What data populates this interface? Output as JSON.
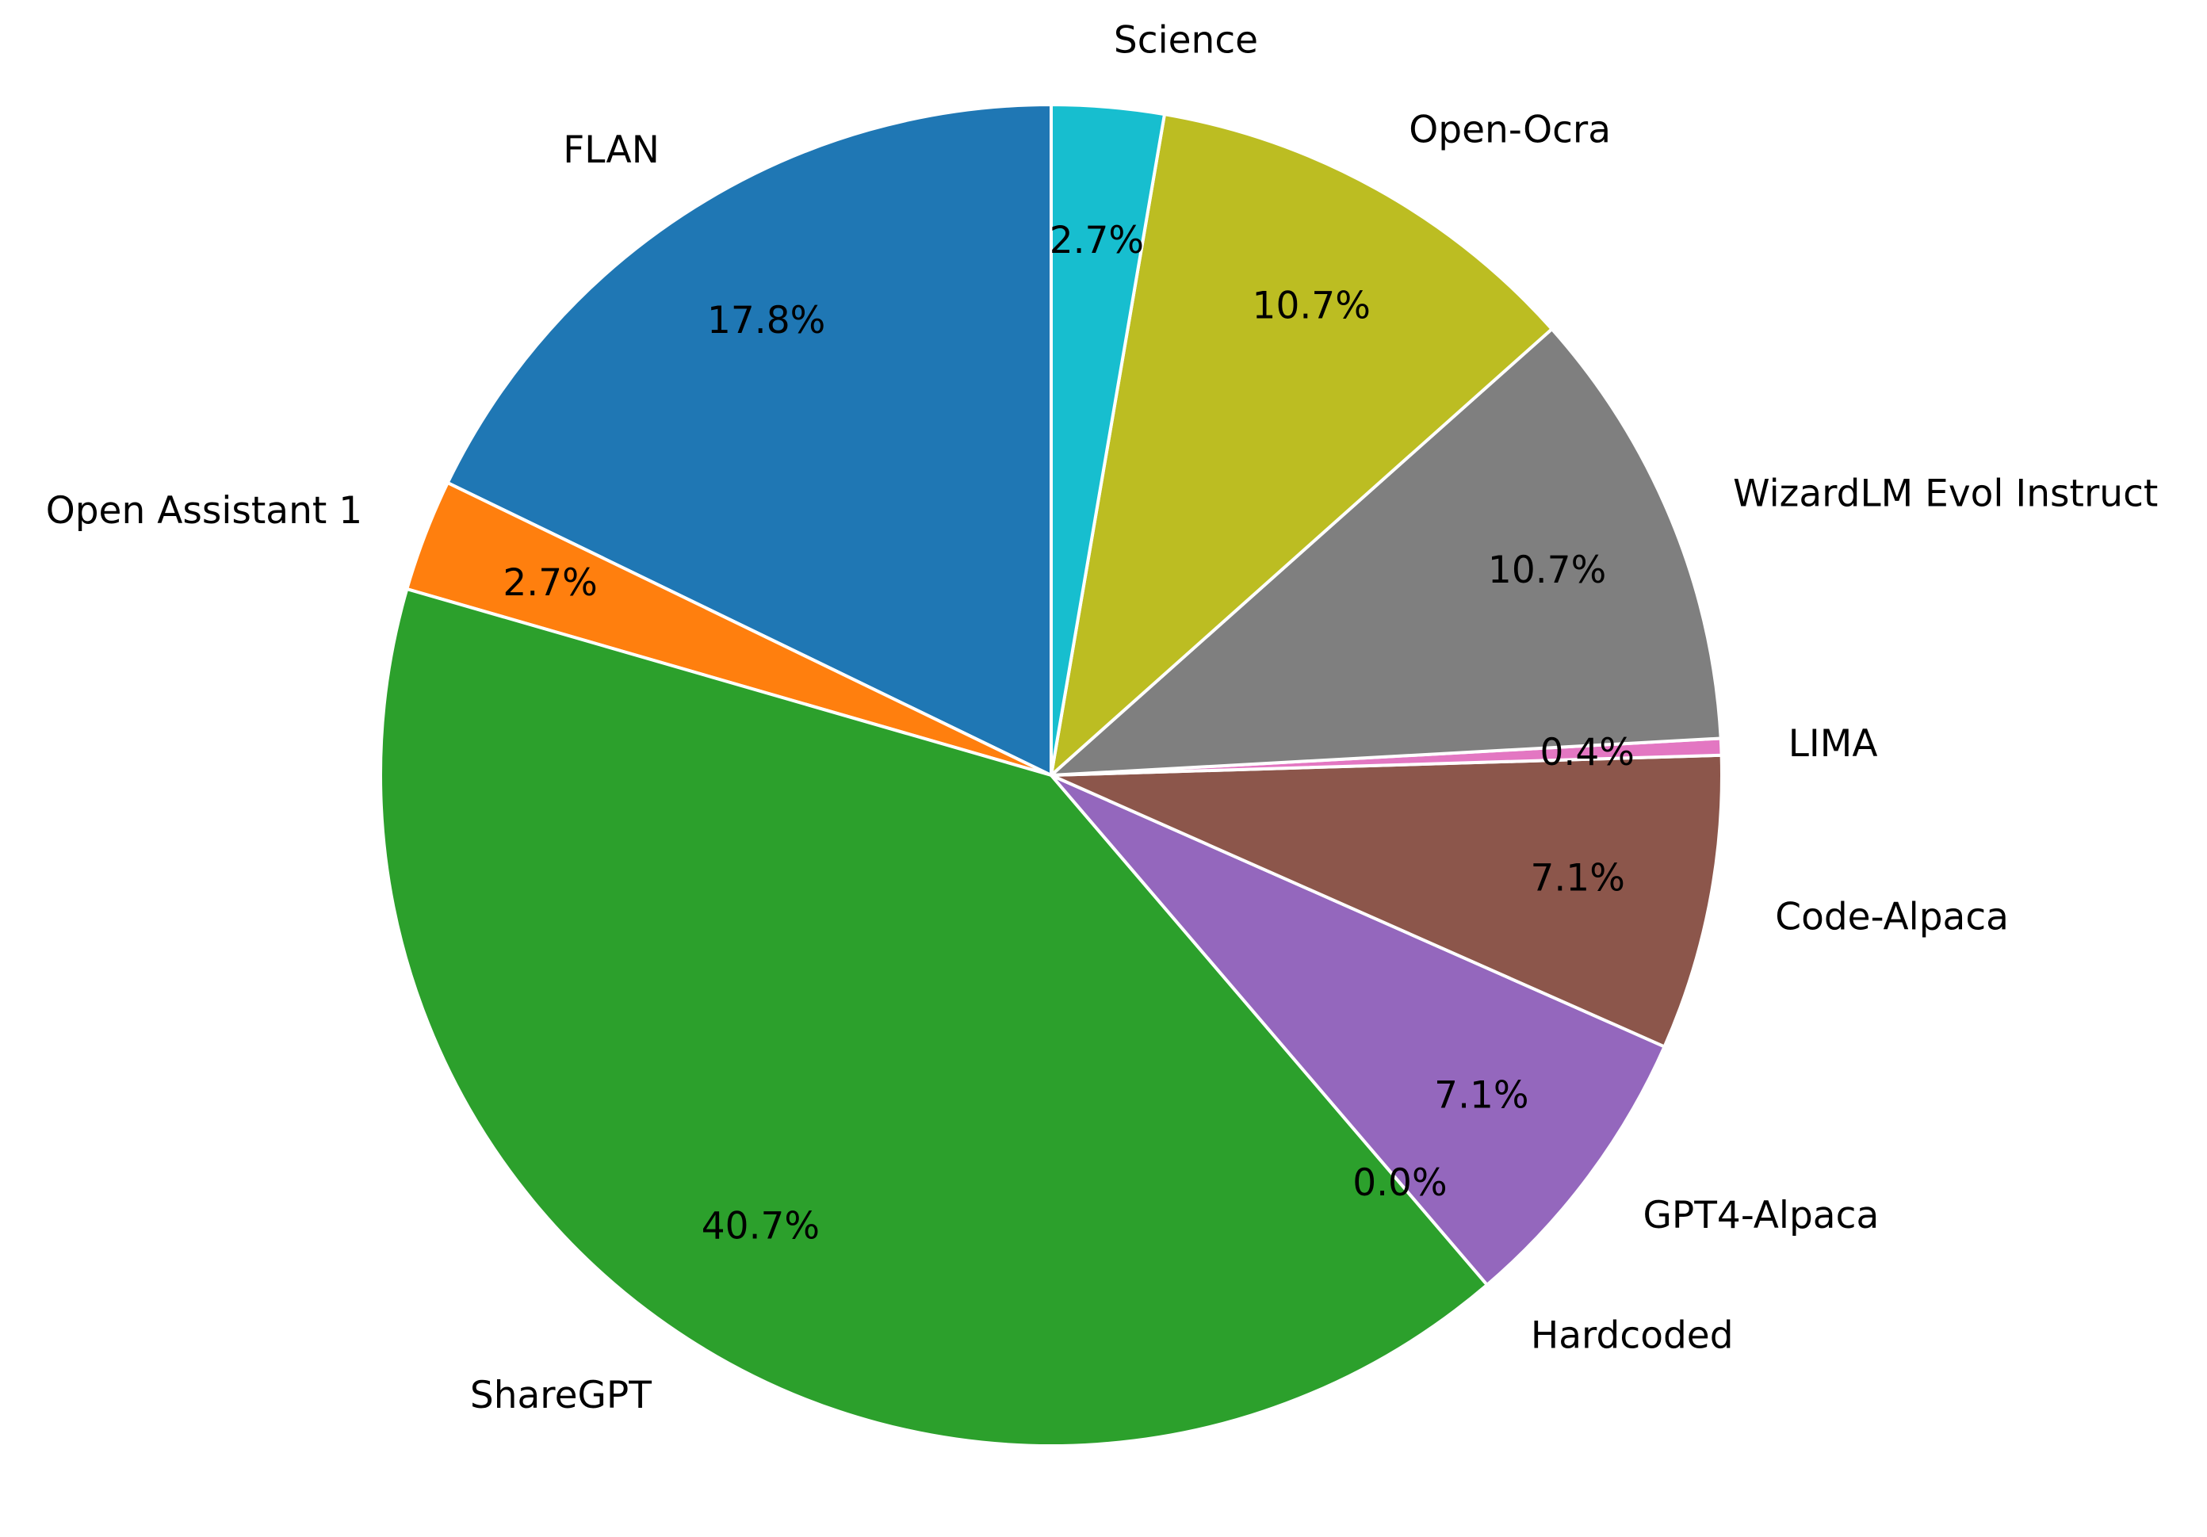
{
  "chart_data": {
    "type": "pie",
    "title": "",
    "start_angle_deg": 90,
    "direction": "counterclockwise",
    "edge_color": "#ffffff",
    "slices": [
      {
        "label": "FLAN",
        "value": 17.8,
        "pct_label": "17.8%",
        "color": "#1f77b4"
      },
      {
        "label": "Open Assistant 1",
        "value": 2.7,
        "pct_label": "2.7%",
        "color": "#ff7f0e"
      },
      {
        "label": "ShareGPT",
        "value": 40.7,
        "pct_label": "40.7%",
        "color": "#2ca02c"
      },
      {
        "label": "Hardcoded",
        "value": 0.0,
        "pct_label": "0.0%",
        "color": "#d62728"
      },
      {
        "label": "GPT4-Alpaca",
        "value": 7.1,
        "pct_label": "7.1%",
        "color": "#9467bd"
      },
      {
        "label": "Code-Alpaca",
        "value": 7.1,
        "pct_label": "7.1%",
        "color": "#8c564b"
      },
      {
        "label": "LIMA",
        "value": 0.4,
        "pct_label": "0.4%",
        "color": "#e377c2"
      },
      {
        "label": "WizardLM Evol Instruct",
        "value": 10.7,
        "pct_label": "10.7%",
        "color": "#7f7f7f"
      },
      {
        "label": "Open-Ocra",
        "value": 10.7,
        "pct_label": "10.7%",
        "color": "#bcbd22"
      },
      {
        "label": "Science",
        "value": 2.7,
        "pct_label": "2.7%",
        "color": "#17becf"
      }
    ]
  }
}
